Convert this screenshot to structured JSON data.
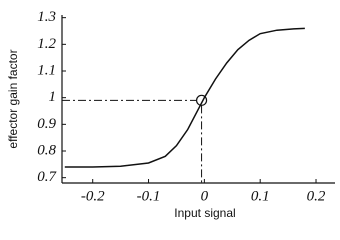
{
  "chart_data": {
    "type": "line",
    "x_label": "Input signal",
    "y_label": "effector gain factor",
    "series": [
      {
        "color": "#111111",
        "x": [
          -0.25,
          -0.2,
          -0.15,
          -0.1,
          -0.07,
          -0.05,
          -0.03,
          -0.01,
          0,
          0.02,
          0.04,
          0.06,
          0.08,
          0.1,
          0.13,
          0.16,
          0.18
        ],
        "values": [
          0.74,
          0.74,
          0.743,
          0.755,
          0.78,
          0.82,
          0.88,
          0.96,
          1.0,
          1.07,
          1.13,
          1.18,
          1.215,
          1.24,
          1.253,
          1.258,
          1.26
        ]
      }
    ],
    "marker": {
      "x": -0.005,
      "y": 0.99
    },
    "xlim": [
      -0.255,
      0.234
    ],
    "ylim": [
      0.68,
      1.31
    ],
    "xticks": [
      -0.2,
      -0.1,
      0,
      0.1,
      0.2
    ],
    "yticks": [
      0.7,
      0.8,
      0.9,
      1,
      1.1,
      1.2,
      1.3
    ]
  }
}
